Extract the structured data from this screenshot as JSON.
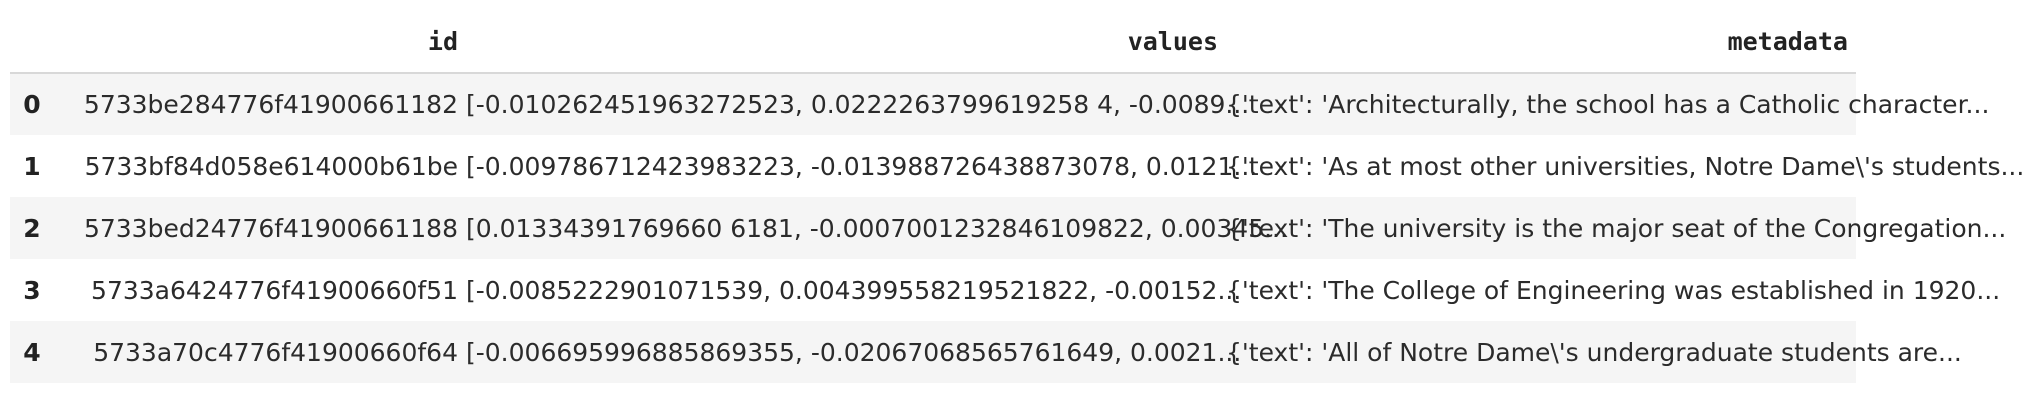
{
  "table": {
    "columns": [
      "",
      "id",
      "values",
      "metadata"
    ],
    "rows": [
      {
        "index": "0",
        "id": "5733be284776f41900661182",
        "values": "[-0.010262451963272523, 0.0222263799619258 4, -0.0089...",
        "metadata": "{'text': 'Architecturally, the school has a Catholic character..."
      },
      {
        "index": "1",
        "id": "5733bf84d058e614000b61be",
        "values": "[-0.009786712423983223, -0.013988726438873078, 0.0121...",
        "metadata": "{'text': 'As at most other universities, Notre Dame\\'s students..."
      },
      {
        "index": "2",
        "id": "5733bed24776f41900661188",
        "values": "[0.01334391769660 6181, -0.0007001232846109822, 0.00345...",
        "metadata": "{'text': 'The university is the major seat of the Congregation..."
      },
      {
        "index": "3",
        "id": "5733a6424776f41900660f51",
        "values": "[-0.0085222901071539, 0.004399558219521822, -0.00152...",
        "metadata": "{'text': 'The College of Engineering was established in 1920..."
      },
      {
        "index": "4",
        "id": "5733a70c4776f41900660f64",
        "values": "[-0.006695996885869355, -0.02067068565761649, 0.0021...",
        "metadata": "{'text': 'All of Notre Dame\\'s undergraduate students are..."
      }
    ]
  }
}
